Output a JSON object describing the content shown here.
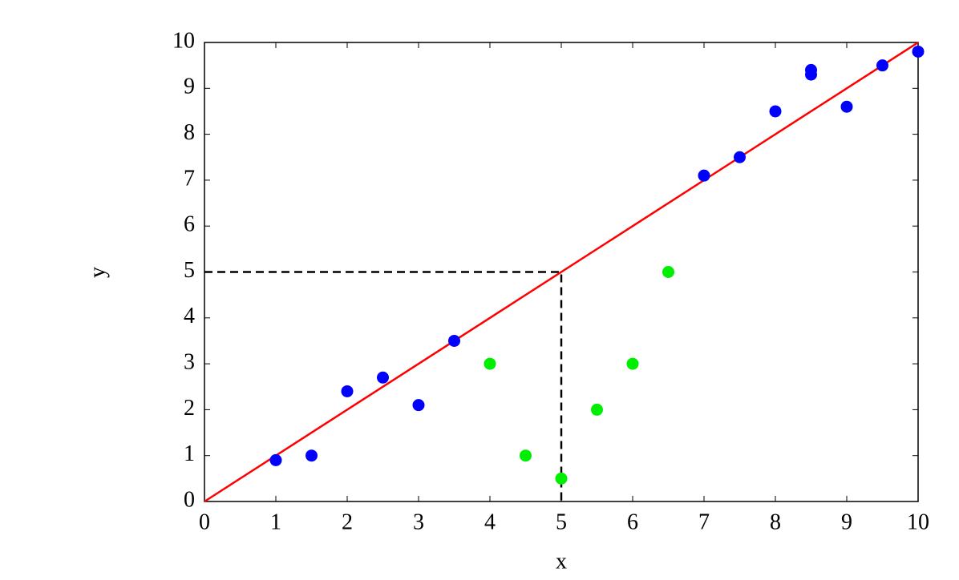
{
  "chart_data": {
    "type": "scatter",
    "xlabel": "x",
    "ylabel": "y",
    "xlim": [
      0,
      10
    ],
    "ylim": [
      0,
      10
    ],
    "xticks": [
      0,
      1,
      2,
      3,
      4,
      5,
      6,
      7,
      8,
      9,
      10
    ],
    "yticks": [
      0,
      1,
      2,
      3,
      4,
      5,
      6,
      7,
      8,
      9,
      10
    ],
    "series": [
      {
        "style": "line",
        "color": "#ff0000",
        "x": [
          0,
          10
        ],
        "values": [
          0,
          10
        ]
      },
      {
        "style": "dashed",
        "color": "#000000",
        "x": [
          0,
          5,
          5
        ],
        "values": [
          5,
          5,
          0
        ]
      },
      {
        "style": "scatter",
        "color": "#0000ff",
        "x": [
          1,
          1.5,
          2,
          2.5,
          3,
          3.5,
          7,
          7.5,
          8,
          8.5,
          8.5,
          9,
          9.5,
          10
        ],
        "values": [
          0.9,
          1.0,
          2.4,
          2.7,
          2.1,
          3.5,
          7.1,
          7.5,
          8.5,
          9.3,
          9.4,
          8.6,
          9.5,
          9.8
        ]
      },
      {
        "style": "scatter",
        "color": "#00ee00",
        "x": [
          4,
          4.5,
          5,
          5.5,
          6,
          6.5
        ],
        "values": [
          3,
          1,
          0.5,
          2,
          3,
          5
        ]
      }
    ]
  }
}
